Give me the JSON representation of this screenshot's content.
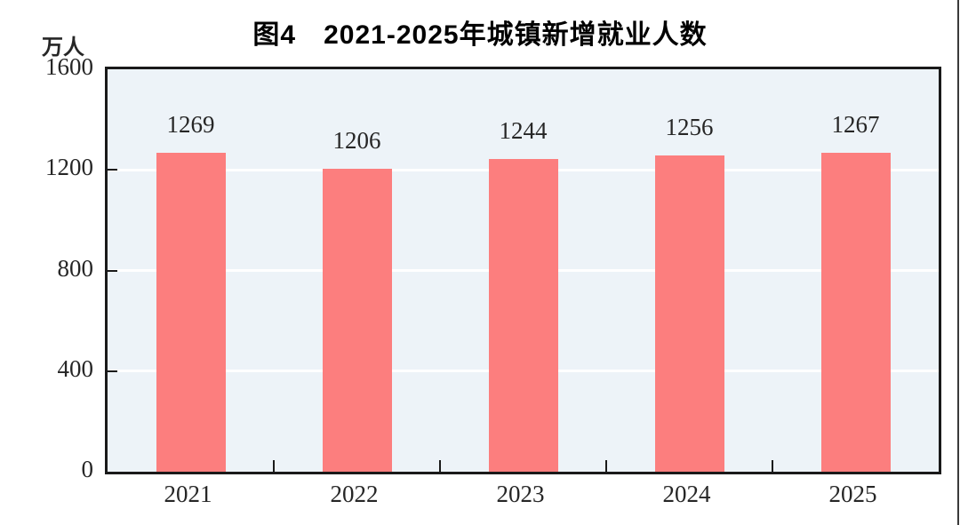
{
  "title": "图4　2021-2025年城镇新增就业人数",
  "unit_label": "万人",
  "colors": {
    "bar": "#fc7e7e",
    "plot_background": "#edf3f8",
    "gridline": "#ffffff",
    "axis": "#1a1a1a",
    "label_text": "#262626",
    "title_text": "#000000",
    "page_edge_line": "#3a3a3a"
  },
  "chart_data": {
    "type": "bar",
    "title": "图4　2021-2025年城镇新增就业人数",
    "categories": [
      "2021",
      "2022",
      "2023",
      "2024",
      "2025"
    ],
    "values": [
      1269,
      1206,
      1244,
      1256,
      1267
    ],
    "xlabel": "",
    "ylabel": "万人",
    "ylim": [
      0,
      1600
    ],
    "yticks": [
      0,
      400,
      800,
      1200,
      1600
    ],
    "grid": true,
    "gridline_color": "white",
    "legend": false,
    "data_labels": true,
    "tick_direction": "inside"
  }
}
